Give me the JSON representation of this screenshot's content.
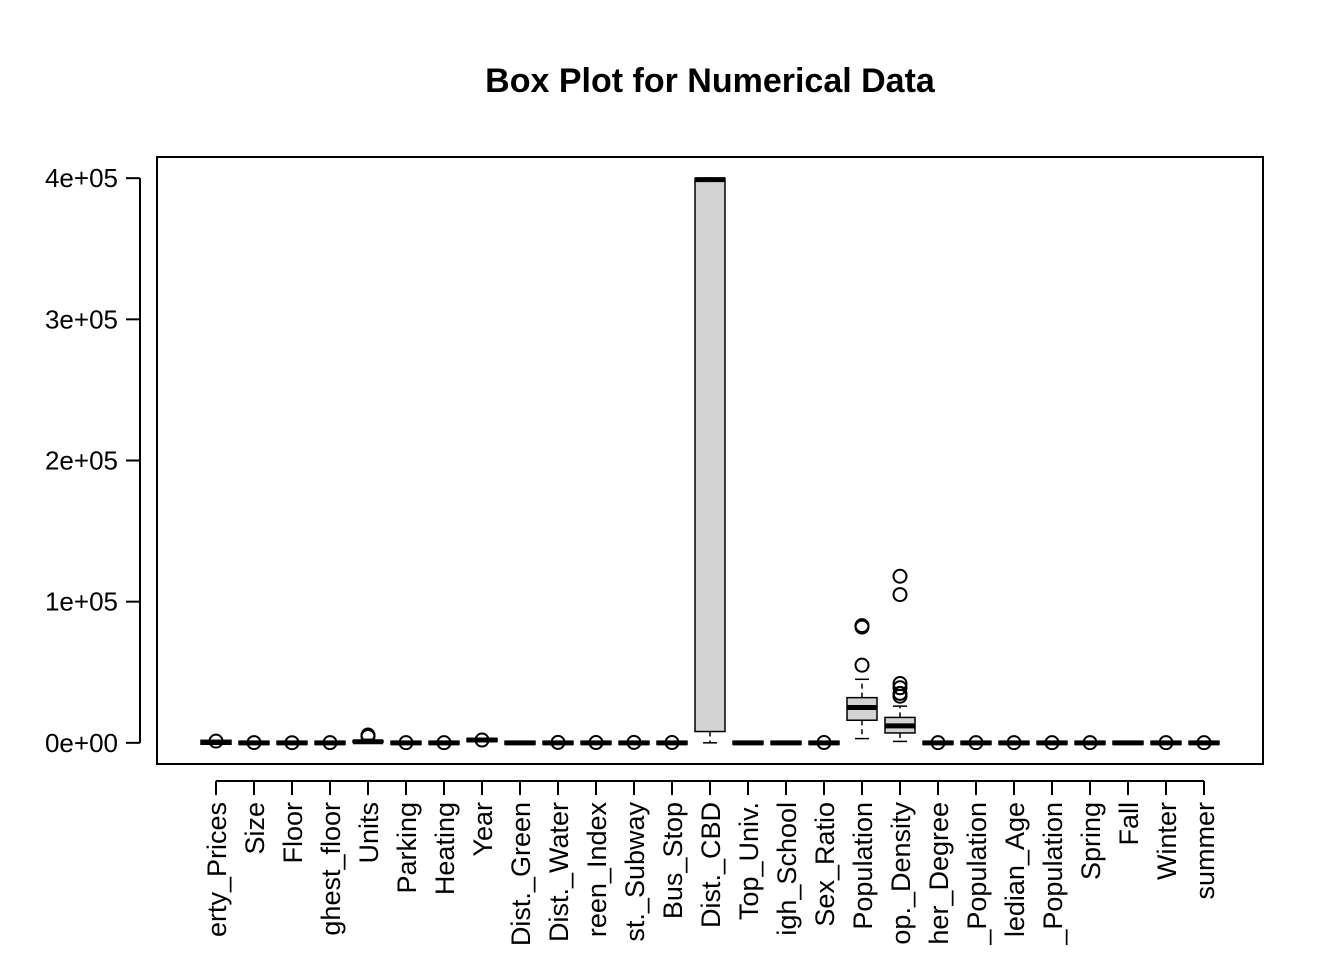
{
  "chart_data": {
    "type": "box",
    "title": "Box Plot for Numerical Data",
    "xlabel": "",
    "ylabel": "",
    "ylim": [
      -15000,
      415000
    ],
    "yticks": [
      0,
      100000,
      200000,
      300000,
      400000
    ],
    "ytick_labels": [
      "0e+00",
      "1e+05",
      "2e+05",
      "3e+05",
      "4e+05"
    ],
    "category_labels": [
      "erty_Prices",
      "Size",
      "Floor",
      "ghest_floor",
      "Units",
      "Parking",
      "Heating",
      "Year",
      "Dist._Green",
      "Dist._Water",
      "reen_Index",
      "st._Subway",
      "Bus_Stop",
      "Dist._CBD",
      "Top_Univ.",
      "igh_School",
      "Sex_Ratio",
      "Population",
      "op._Density",
      "her_Degree",
      "_Population",
      "ledian_Age",
      "_Population",
      "Spring",
      "Fall",
      "Winter",
      "summer"
    ],
    "series": [
      {
        "box": [
          0,
          50,
          300,
          700,
          1000
        ],
        "outliers": [
          1200
        ]
      },
      {
        "box": [
          0,
          0,
          0,
          0,
          0
        ],
        "outliers": [
          150
        ]
      },
      {
        "box": [
          0,
          0,
          0,
          0,
          0
        ],
        "outliers": [
          80
        ]
      },
      {
        "box": [
          0,
          0,
          0,
          0,
          0
        ],
        "outliers": [
          120
        ]
      },
      {
        "box": [
          0,
          300,
          800,
          1500,
          2500
        ],
        "outliers": [
          4500,
          5500
        ]
      },
      {
        "box": [
          0,
          0,
          0,
          0,
          0
        ],
        "outliers": [
          100
        ]
      },
      {
        "box": [
          0,
          0,
          0,
          0,
          0
        ],
        "outliers": [
          100
        ]
      },
      {
        "box": [
          1950,
          1990,
          2000,
          2010,
          2020
        ],
        "outliers": [
          1970
        ]
      },
      {
        "box": [
          0,
          0,
          0,
          0,
          0
        ],
        "outliers": []
      },
      {
        "box": [
          0,
          0,
          0,
          0,
          0
        ],
        "outliers": [
          300
        ]
      },
      {
        "box": [
          0,
          0,
          0,
          0,
          0
        ],
        "outliers": [
          200
        ]
      },
      {
        "box": [
          0,
          0,
          0,
          0,
          0
        ],
        "outliers": [
          300
        ]
      },
      {
        "box": [
          0,
          0,
          0,
          0,
          0
        ],
        "outliers": [
          200
        ]
      },
      {
        "box": [
          0,
          8000,
          399000,
          400000,
          400000
        ],
        "outliers": []
      },
      {
        "box": [
          0,
          0,
          0,
          0,
          0
        ],
        "outliers": []
      },
      {
        "box": [
          0,
          0,
          0,
          0,
          0
        ],
        "outliers": []
      },
      {
        "box": [
          0,
          0,
          0,
          0,
          0
        ],
        "outliers": [
          200
        ]
      },
      {
        "box": [
          3000,
          16000,
          25000,
          32000,
          45000
        ],
        "outliers": [
          55000,
          82000,
          83000
        ]
      },
      {
        "box": [
          1000,
          7000,
          12000,
          18000,
          26000
        ],
        "outliers": [
          33000,
          35000,
          39000,
          42000,
          105000,
          118000
        ]
      },
      {
        "box": [
          0,
          0,
          0,
          0,
          0
        ],
        "outliers": [
          100
        ]
      },
      {
        "box": [
          0,
          0,
          0,
          0,
          0
        ],
        "outliers": [
          100
        ]
      },
      {
        "box": [
          0,
          0,
          0,
          0,
          0
        ],
        "outliers": [
          100
        ]
      },
      {
        "box": [
          0,
          0,
          0,
          0,
          0
        ],
        "outliers": [
          100
        ]
      },
      {
        "box": [
          0,
          0,
          0,
          0,
          0
        ],
        "outliers": [
          100
        ]
      },
      {
        "box": [
          0,
          0,
          0,
          0,
          0
        ],
        "outliers": []
      },
      {
        "box": [
          0,
          0,
          0,
          0,
          0
        ],
        "outliers": [
          100
        ]
      },
      {
        "box": [
          0,
          0,
          0,
          0,
          0
        ],
        "outliers": [
          100
        ]
      }
    ],
    "box_fill": "#d3d3d3",
    "line_color": "#000000",
    "grid": false,
    "legend": "none"
  }
}
